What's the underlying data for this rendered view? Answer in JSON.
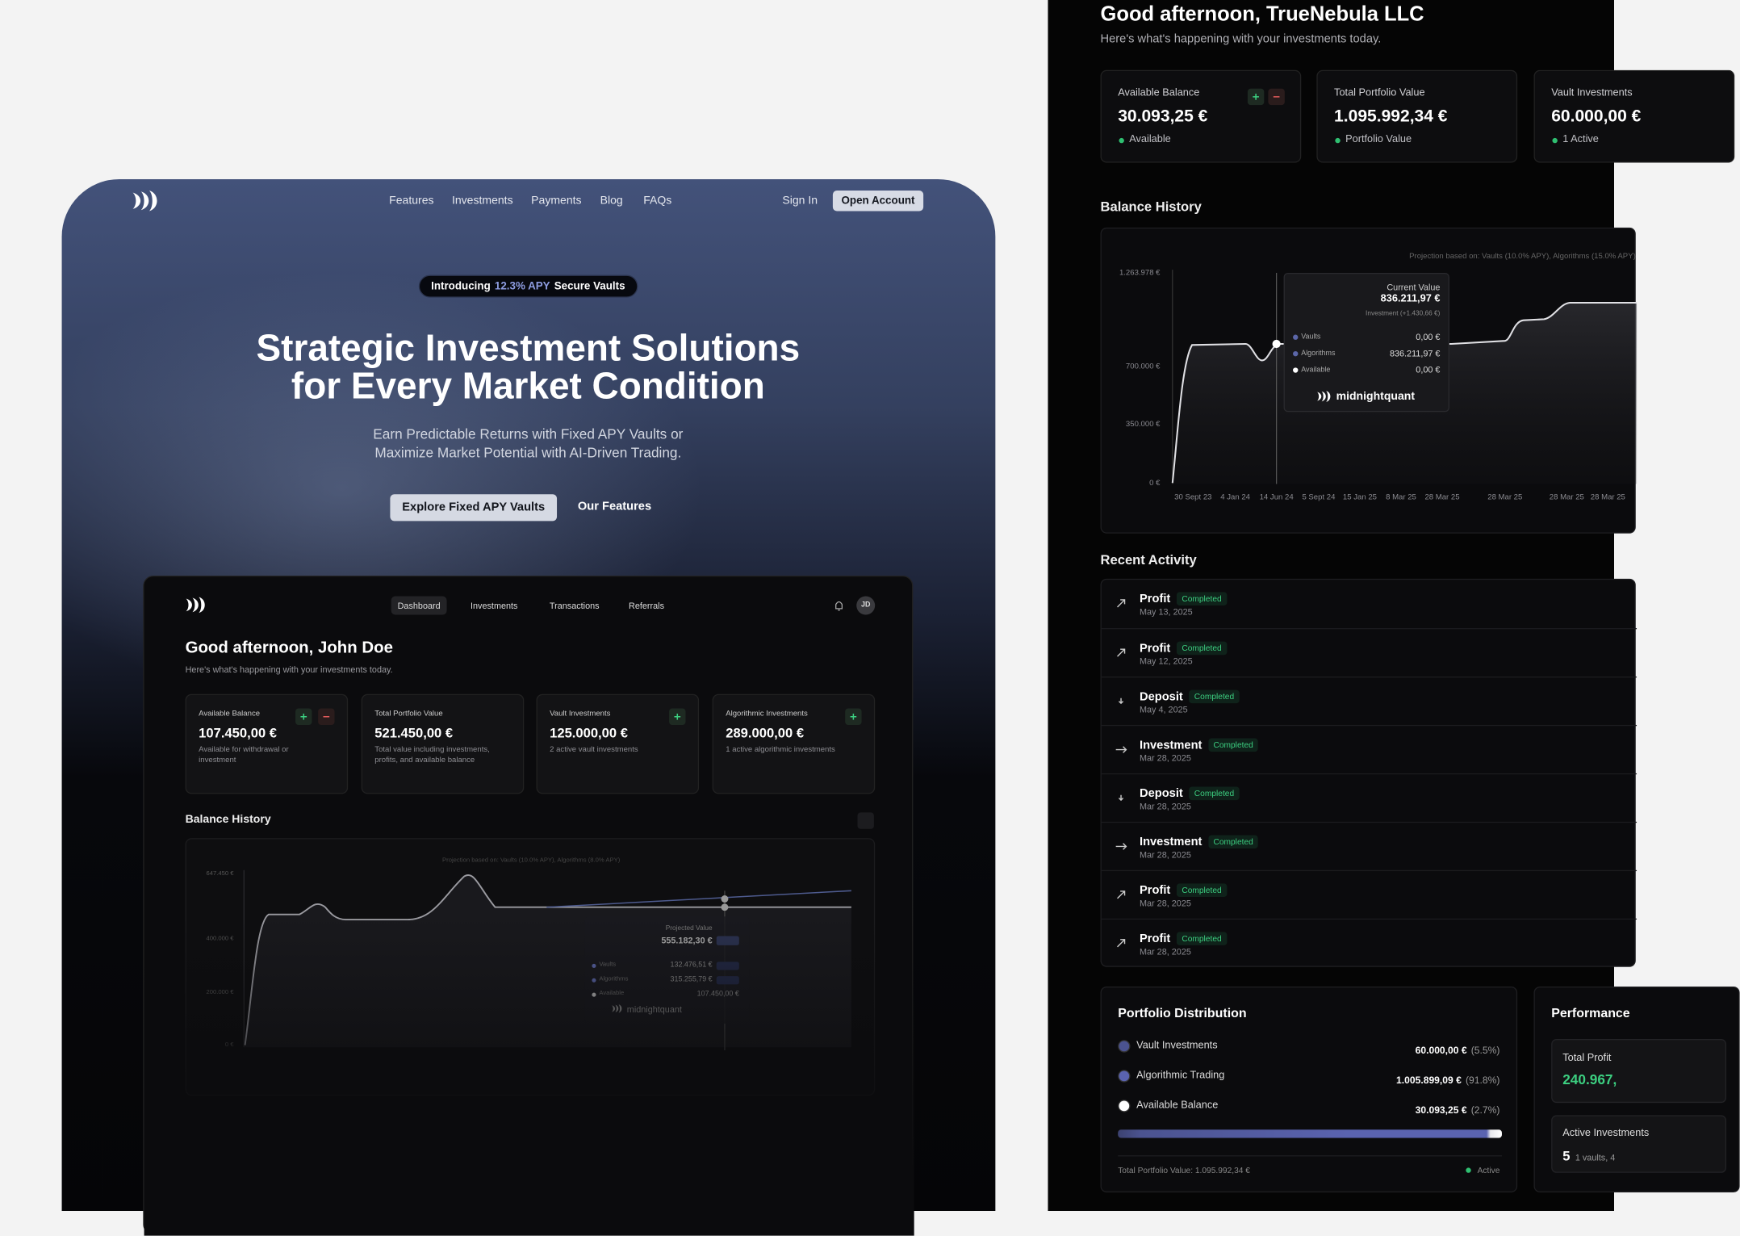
{
  "hero": {
    "nav": {
      "links": [
        "Features",
        "Investments",
        "Payments",
        "Blog",
        "FAQs"
      ],
      "sign_in": "Sign In",
      "cta": "Open Account"
    },
    "badge": {
      "prefix": "Introducing",
      "highlight": "12.3% APY",
      "suffix": "Secure Vaults"
    },
    "title_lines": [
      "Strategic Investment Solutions",
      "for Every Market Condition"
    ],
    "subtitle_lines": [
      "Earn Predictable Returns with Fixed APY Vaults or",
      "Maximize Market Potential with AI-Driven Trading."
    ],
    "primary_button": "Explore Fixed APY Vaults",
    "secondary_button": "Our Features"
  },
  "preview": {
    "tabs": [
      "Dashboard",
      "Investments",
      "Transactions",
      "Referrals"
    ],
    "avatar": "JD",
    "greeting": "Good afternoon, John Doe",
    "subtitle": "Here's what's happening with your investments today.",
    "cards": [
      {
        "label": "Available Balance",
        "value": "107.450,00 €",
        "note": "Available for withdrawal or investment"
      },
      {
        "label": "Total Portfolio Value",
        "value": "521.450,00 €",
        "note": "Total value including investments, profits, and available balance"
      },
      {
        "label": "Vault Investments",
        "value": "125.000,00 €",
        "note": "2 active vault investments"
      },
      {
        "label": "Algorithmic Investments",
        "value": "289.000,00 €",
        "note": "1 active algorithmic investments"
      }
    ],
    "balance_title": "Balance History",
    "chart": {
      "note": "Projection based on: Vaults (10.0% APY), Algorithms (8.0% APY)",
      "y_labels": [
        "647.450 €",
        "400.000 €",
        "200.000 €",
        "0 €"
      ],
      "tooltip": {
        "title": "Projected Value",
        "value": "555.182,30 €",
        "rows": [
          {
            "label": "Vaults",
            "value": "132.476,51 €"
          },
          {
            "label": "Algorithms",
            "value": "315.255,79 €"
          },
          {
            "label": "Available",
            "value": "107.450,00 €"
          }
        ],
        "brand": "midnightquant"
      }
    }
  },
  "dashboard": {
    "greeting": "Good afternoon, TrueNebula LLC",
    "subtitle": "Here's what's happening with your investments today.",
    "cards": [
      {
        "label": "Available Balance",
        "value": "30.093,25 €",
        "status": "Available"
      },
      {
        "label": "Total Portfolio Value",
        "value": "1.095.992,34 €",
        "status": "Portfolio Value"
      },
      {
        "label": "Vault Investments",
        "value": "60.000,00 €",
        "status": "1 Active"
      }
    ],
    "balance_title": "Balance History",
    "chart": {
      "note": "Projection based on: Vaults (10.0% APY), Algorithms (15.0% APY)",
      "y_labels": [
        "1.263.978 €",
        "700.000 €",
        "350.000 €",
        "0 €"
      ],
      "x_labels": [
        "30 Sept 23",
        "4 Jan 24",
        "14 Jun 24",
        "5 Sept 24",
        "15 Jan 25",
        "8 Mar 25",
        "28 Mar 25",
        "28 Mar 25",
        "28 Mar 25",
        "28 Mar 25"
      ],
      "tooltip": {
        "title": "Current Value",
        "value": "836.211,97 €",
        "investment": "Investment (+1.430,66 €)",
        "rows": [
          {
            "label": "Vaults",
            "value": "0,00 €"
          },
          {
            "label": "Algorithms",
            "value": "836.211,97 €"
          },
          {
            "label": "Available",
            "value": "0,00 €"
          }
        ],
        "brand": "midnightquant"
      }
    },
    "activity_title": "Recent Activity",
    "activity": [
      {
        "type": "Profit",
        "status": "Completed",
        "date": "May 13, 2025"
      },
      {
        "type": "Profit",
        "status": "Completed",
        "date": "May 12, 2025"
      },
      {
        "type": "Deposit",
        "status": "Completed",
        "date": "May 4, 2025"
      },
      {
        "type": "Investment",
        "status": "Completed",
        "date": "Mar 28, 2025"
      },
      {
        "type": "Deposit",
        "status": "Completed",
        "date": "Mar 28, 2025"
      },
      {
        "type": "Investment",
        "status": "Completed",
        "date": "Mar 28, 2025"
      },
      {
        "type": "Profit",
        "status": "Completed",
        "date": "Mar 28, 2025"
      },
      {
        "type": "Profit",
        "status": "Completed",
        "date": "Mar 28, 2025"
      }
    ],
    "distribution": {
      "title": "Portfolio Distribution",
      "items": [
        {
          "label": "Vault Investments",
          "value": "60.000,00 €",
          "share": "(5.5%)"
        },
        {
          "label": "Algorithmic Trading",
          "value": "1.005.899,09 €",
          "share": "(91.8%)"
        },
        {
          "label": "Available Balance",
          "value": "30.093,25 €",
          "share": "(2.7%)"
        }
      ],
      "footer": "Total Portfolio Value: 1.095.992,34 €",
      "status": "Active"
    },
    "performance": {
      "title": "Performance",
      "total_profit_label": "Total Profit",
      "total_profit_value": "240.967,",
      "active_label": "Active Investments",
      "active_count": "5",
      "active_note": "1 vaults, 4"
    }
  }
}
